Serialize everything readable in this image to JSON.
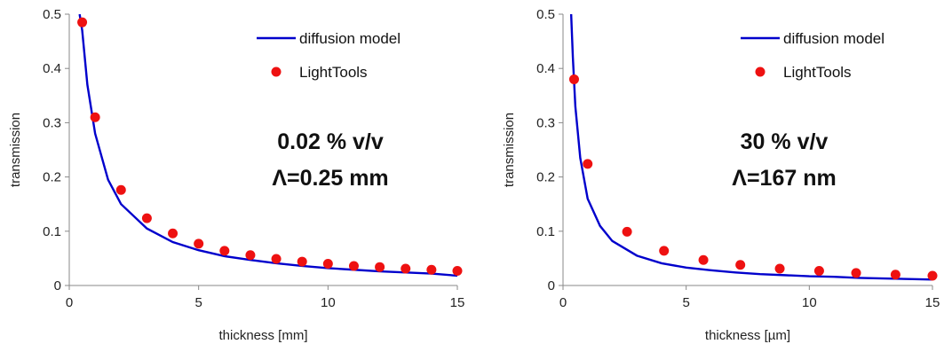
{
  "colors": {
    "model": "#0000CC",
    "points": "#EE1111",
    "axis": "#888888"
  },
  "chart_data": [
    {
      "type": "scatter",
      "xlabel": "thickness [mm]",
      "ylabel": "transmission",
      "xlim": [
        0,
        15
      ],
      "ylim": [
        0,
        0.5
      ],
      "xticks": [
        "0",
        "5",
        "10",
        "15"
      ],
      "yticks": [
        "0",
        "0.1",
        "0.2",
        "0.3",
        "0.4",
        "0.5"
      ],
      "legend_position": "top-right",
      "grid": false,
      "series": [
        {
          "name": "diffusion model",
          "kind": "line",
          "x": [
            0.4,
            0.5,
            0.7,
            1,
            1.5,
            2,
            3,
            4,
            5,
            6,
            7,
            8,
            9,
            10,
            11,
            12,
            13,
            14,
            15
          ],
          "y": [
            0.5,
            0.47,
            0.37,
            0.28,
            0.195,
            0.15,
            0.105,
            0.08,
            0.065,
            0.054,
            0.047,
            0.041,
            0.036,
            0.032,
            0.029,
            0.026,
            0.024,
            0.022,
            0.018
          ]
        },
        {
          "name": "LightTools",
          "kind": "points",
          "x": [
            0.5,
            1,
            2,
            3,
            4,
            5,
            6,
            7,
            8,
            9,
            10,
            11,
            12,
            13,
            14,
            15
          ],
          "y": [
            0.485,
            0.31,
            0.176,
            0.124,
            0.096,
            0.077,
            0.064,
            0.056,
            0.049,
            0.044,
            0.04,
            0.036,
            0.034,
            0.031,
            0.029,
            0.027
          ]
        }
      ],
      "annotations": [
        "0.02 % v/v",
        "Λ=0.25 mm"
      ]
    },
    {
      "type": "scatter",
      "xlabel": "thickness [µm]",
      "ylabel": "transmission",
      "xlim": [
        0,
        15
      ],
      "ylim": [
        0,
        0.5
      ],
      "xticks": [
        "0",
        "5",
        "10",
        "15"
      ],
      "yticks": [
        "0",
        "0.1",
        "0.2",
        "0.3",
        "0.4",
        "0.5"
      ],
      "legend_position": "top-right",
      "grid": false,
      "series": [
        {
          "name": "diffusion model",
          "kind": "line",
          "x": [
            0.33,
            0.4,
            0.5,
            0.7,
            1,
            1.5,
            2,
            3,
            4,
            5,
            6,
            7,
            8,
            9,
            10,
            11,
            12,
            13,
            14,
            15
          ],
          "y": [
            0.5,
            0.42,
            0.33,
            0.235,
            0.16,
            0.11,
            0.082,
            0.055,
            0.041,
            0.033,
            0.028,
            0.024,
            0.021,
            0.019,
            0.017,
            0.016,
            0.014,
            0.013,
            0.012,
            0.011
          ]
        },
        {
          "name": "LightTools",
          "kind": "points",
          "x": [
            0.45,
            1,
            2.6,
            4.1,
            5.7,
            7.2,
            8.8,
            10.4,
            11.9,
            13.5,
            15
          ],
          "y": [
            0.38,
            0.224,
            0.099,
            0.064,
            0.047,
            0.038,
            0.031,
            0.027,
            0.023,
            0.02,
            0.018
          ]
        }
      ],
      "annotations": [
        "30 % v/v",
        "Λ=167 nm"
      ]
    }
  ]
}
